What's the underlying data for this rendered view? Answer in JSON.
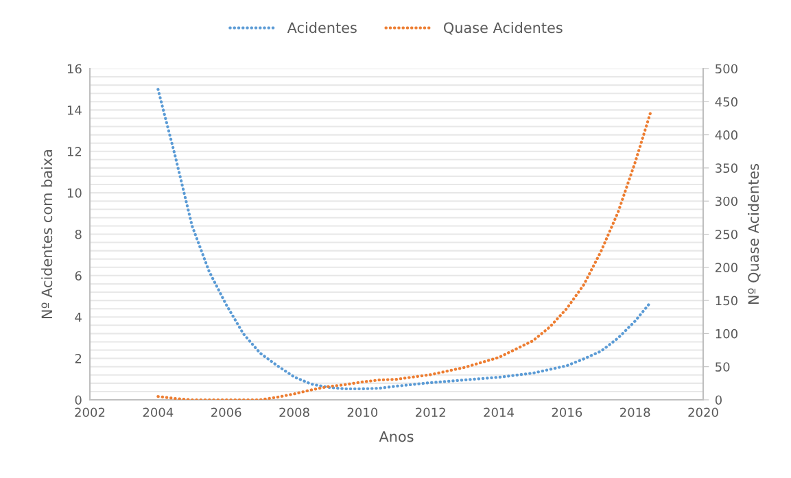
{
  "chart_data": {
    "type": "line",
    "xlabel": "Anos",
    "ylabel": "Nº Acidentes com baixa",
    "y2label": "Nº Quase Acidentes",
    "xlim": [
      2002,
      2020
    ],
    "xticks": [
      2002,
      2004,
      2006,
      2008,
      2010,
      2012,
      2014,
      2016,
      2018,
      2020
    ],
    "ylim": [
      0,
      16
    ],
    "yticks": [
      0,
      {
        "value": 0.4,
        "label": null
      },
      {
        "value": 0.8,
        "label": null
      },
      {
        "value": 1.2,
        "label": null
      },
      {
        "value": 1.6,
        "label": null
      },
      2,
      {
        "value": 2.4,
        "label": null
      },
      {
        "value": 2.8,
        "label": null
      },
      {
        "value": 3.2,
        "label": null
      },
      {
        "value": 3.6,
        "label": null
      },
      4,
      {
        "value": 4.4,
        "label": null
      },
      {
        "value": 4.8,
        "label": null
      },
      {
        "value": 5.2,
        "label": null
      },
      {
        "value": 5.6,
        "label": null
      },
      6,
      {
        "value": 6.4,
        "label": null
      },
      {
        "value": 6.8,
        "label": null
      },
      {
        "value": 7.2,
        "label": null
      },
      {
        "value": 7.6,
        "label": null
      },
      8,
      {
        "value": 8.4,
        "label": null
      },
      {
        "value": 8.8,
        "label": null
      },
      {
        "value": 9.2,
        "label": null
      },
      {
        "value": 9.6,
        "label": null
      },
      10,
      {
        "value": 10.4,
        "label": null
      },
      {
        "value": 10.8,
        "label": null
      },
      {
        "value": 11.2,
        "label": null
      },
      {
        "value": 11.6,
        "label": null
      },
      12,
      {
        "value": 12.4,
        "label": null
      },
      {
        "value": 12.8,
        "label": null
      },
      {
        "value": 13.2,
        "label": null
      },
      {
        "value": 13.6,
        "label": null
      },
      14,
      {
        "value": 14.4,
        "label": null
      },
      {
        "value": 14.8,
        "label": null
      },
      {
        "value": 15.2,
        "label": null
      },
      {
        "value": 15.6,
        "label": null
      },
      16
    ],
    "y2lim": [
      0,
      500
    ],
    "y2ticks": [
      0,
      50,
      100,
      150,
      200,
      250,
      300,
      350,
      400,
      450,
      500
    ],
    "grid": "y",
    "legend": "top",
    "line_style": "dotted",
    "marker": "none",
    "series": [
      {
        "name": "Acidentes",
        "color": "#5b9bd5",
        "x": [
          2004,
          2004.5,
          2005,
          2005.5,
          2006,
          2006.5,
          2007,
          2007.5,
          2008,
          2008.5,
          2009,
          2009.5,
          2010,
          2010.5,
          2011,
          2012,
          2013,
          2014,
          2015,
          2016,
          2016.5,
          2017,
          2017.5,
          2018,
          2018.45
        ],
        "values": [
          15.0,
          11.8,
          8.4,
          6.2,
          4.6,
          3.2,
          2.25,
          1.65,
          1.1,
          0.76,
          0.6,
          0.53,
          0.53,
          0.56,
          0.66,
          0.83,
          0.96,
          1.09,
          1.29,
          1.65,
          1.98,
          2.35,
          2.98,
          3.8,
          4.7
        ]
      },
      {
        "name": "Quase Acidentes",
        "color": "#ed7d31",
        "axis": "y2",
        "x": [
          2004,
          2004.5,
          2005,
          2006,
          2007,
          2007.5,
          2008,
          2008.5,
          2009,
          2009.5,
          2010,
          2010.5,
          2011,
          2012,
          2013,
          2014,
          2015,
          2015.5,
          2016,
          2016.5,
          2017,
          2017.5,
          2018,
          2018.45
        ],
        "values": [
          5,
          2,
          0,
          0,
          0,
          4,
          9,
          15,
          20,
          23,
          27,
          30,
          31,
          38,
          49,
          64,
          89,
          110,
          138,
          174,
          224,
          283,
          358,
          433
        ]
      }
    ]
  }
}
